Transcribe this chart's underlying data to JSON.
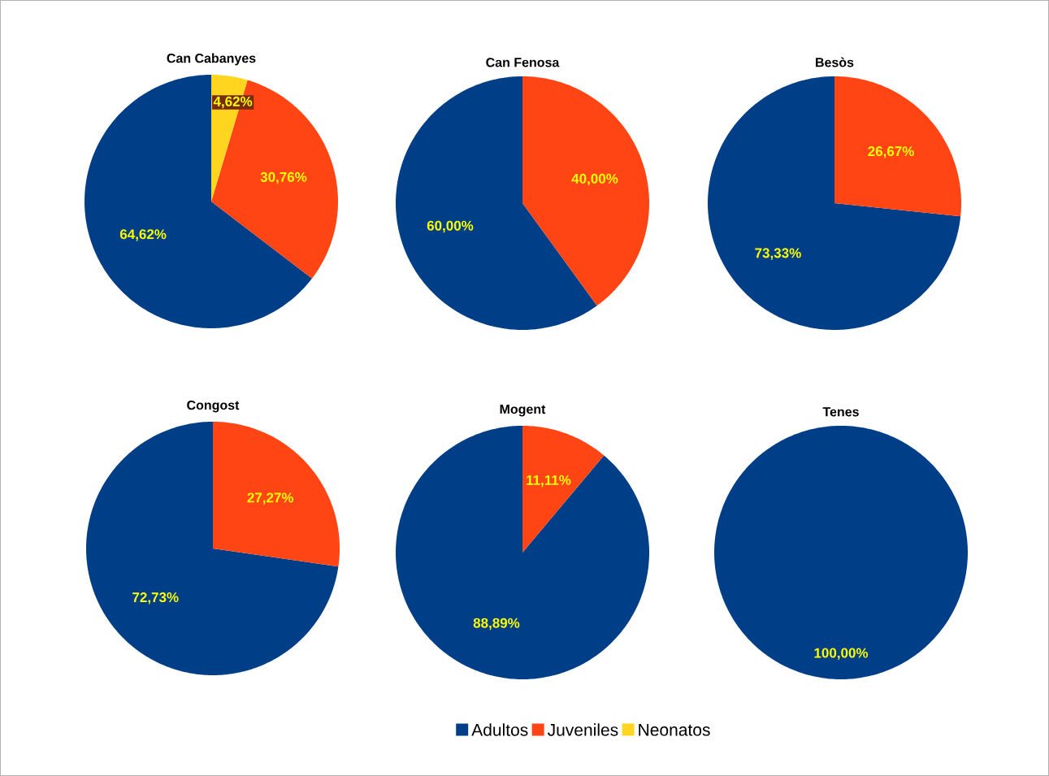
{
  "chart_data": [
    {
      "type": "pie",
      "title": "Can Cabanyes",
      "categories": [
        "Adultos",
        "Juveniles",
        "Neonatos"
      ],
      "values": [
        64.62,
        30.76,
        4.62
      ],
      "value_labels": [
        "64,62%",
        "30,76%",
        "4,62%"
      ],
      "colors": [
        "#003f87",
        "#ff4514",
        "#ffd520"
      ],
      "legend": "bottom"
    },
    {
      "type": "pie",
      "title": "Can Fenosa",
      "values": [
        60.0,
        40.0
      ],
      "value_labels": [
        "60,00%",
        "40,00%"
      ],
      "colors": [
        "#003f87",
        "#ff4514"
      ]
    },
    {
      "type": "pie",
      "title": "Besòs",
      "values": [
        73.33,
        26.67
      ],
      "value_labels": [
        "73,33%",
        "26,67%"
      ],
      "colors": [
        "#003f87",
        "#ff4514"
      ]
    },
    {
      "type": "pie",
      "title": "Congost",
      "values": [
        72.73,
        27.27
      ],
      "value_labels": [
        "72,73%",
        "27,27%"
      ],
      "colors": [
        "#003f87",
        "#ff4514"
      ]
    },
    {
      "type": "pie",
      "title": "Mogent",
      "values": [
        88.89,
        11.11
      ],
      "value_labels": [
        "88,89%",
        "11,11%"
      ],
      "colors": [
        "#003f87",
        "#ff4514"
      ]
    },
    {
      "type": "pie",
      "title": "Tenes",
      "values": [
        100.0
      ],
      "value_labels": [
        "100,00%"
      ],
      "colors": [
        "#003f87"
      ]
    }
  ]
}
